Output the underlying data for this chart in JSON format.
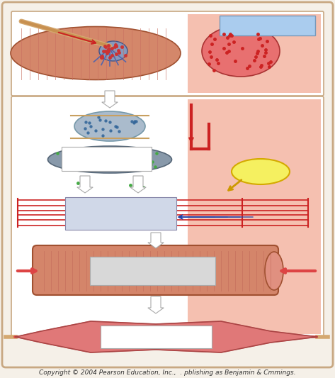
{
  "background_color": "#f5f0e8",
  "outer_border_color": "#c8a882",
  "fig_bg": "#f5f0e8",
  "top_panel_pink_bg": "#f5c0b0",
  "pink_bg_right": "#f5c0b0",
  "copyright_text": "Copyright © 2004 Pearson Education, Inc.,  . pblishing as Benjamin & Cmmings.",
  "copyright_fontsize": 6.5,
  "muscle_stripe_color": "#c87060",
  "dot_color_red": "#cc2222",
  "dot_color_green": "#448844",
  "yellow_ellipse_color": "#f5f060",
  "yellow_ellipse_edge": "#d4aa00",
  "sarcomere_line_color": "#cc2222",
  "label_box_color": "#e0e0e0",
  "label_box_edge": "#aaaaaa"
}
